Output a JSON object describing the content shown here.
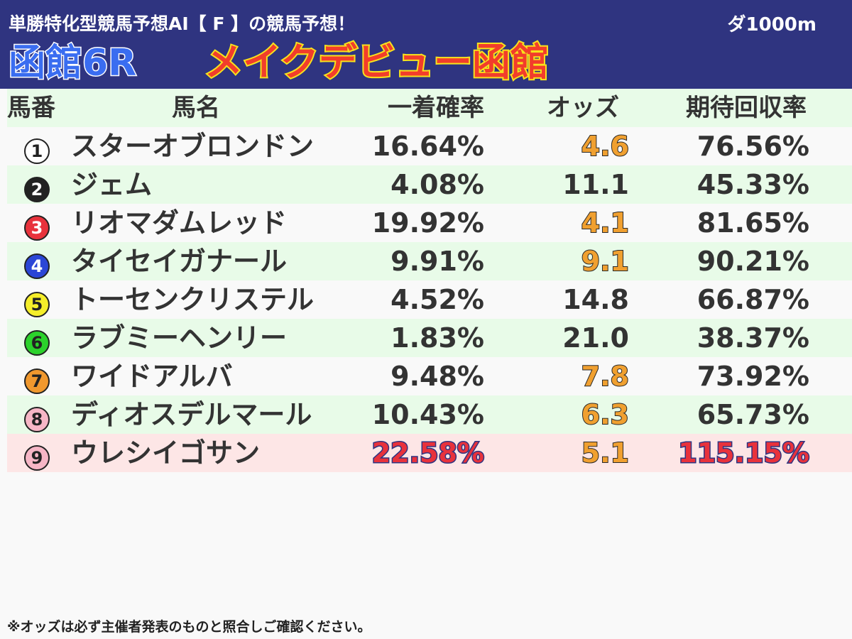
{
  "header": {
    "subtitle": "単勝特化型競馬予想AI【 F 】の競馬予想！",
    "distance": "ダ1000m",
    "race_number": "函館6R",
    "race_name": "メイクデビュー函館"
  },
  "table": {
    "columns": {
      "num": "馬番",
      "name": "馬名",
      "win": "一着確率",
      "odds": "オッズ",
      "ret": "期待回収率"
    },
    "rows": [
      {
        "num": "1",
        "name": "スターオブロンドン",
        "win": "16.64%",
        "odds": "4.6",
        "ret": "76.56%",
        "badge_bg": "#ffffff",
        "badge_fg": "#222222"
      },
      {
        "num": "2",
        "name": "ジェム",
        "win": "4.08%",
        "odds": "11.1",
        "ret": "45.33%",
        "badge_bg": "#222222",
        "badge_fg": "#ffffff"
      },
      {
        "num": "3",
        "name": "リオマダムレッド",
        "win": "19.92%",
        "odds": "4.1",
        "ret": "81.65%",
        "badge_bg": "#e8323c",
        "badge_fg": "#ffffff"
      },
      {
        "num": "4",
        "name": "タイセイガナール",
        "win": "9.91%",
        "odds": "9.1",
        "ret": "90.21%",
        "badge_bg": "#2b46d6",
        "badge_fg": "#ffffff"
      },
      {
        "num": "5",
        "name": "トーセンクリステル",
        "win": "4.52%",
        "odds": "14.8",
        "ret": "66.87%",
        "badge_bg": "#f5ee2a",
        "badge_fg": "#222222"
      },
      {
        "num": "6",
        "name": "ラブミーヘンリー",
        "win": "1.83%",
        "odds": "21.0",
        "ret": "38.37%",
        "badge_bg": "#2bd22b",
        "badge_fg": "#222222"
      },
      {
        "num": "7",
        "name": "ワイドアルバ",
        "win": "9.48%",
        "odds": "7.8",
        "ret": "73.92%",
        "badge_bg": "#f0982e",
        "badge_fg": "#222222"
      },
      {
        "num": "8",
        "name": "ディオスデルマール",
        "win": "10.43%",
        "odds": "6.3",
        "ret": "65.73%",
        "badge_bg": "#f6b6c6",
        "badge_fg": "#222222"
      },
      {
        "num": "9",
        "name": "ウレシイゴサン",
        "win": "22.58%",
        "odds": "5.1",
        "ret": "115.15%",
        "badge_bg": "#f6b6c6",
        "badge_fg": "#222222"
      }
    ]
  },
  "footer": {
    "note": "※オッズは必ず主催者発表のものと照合しご確認ください。"
  }
}
